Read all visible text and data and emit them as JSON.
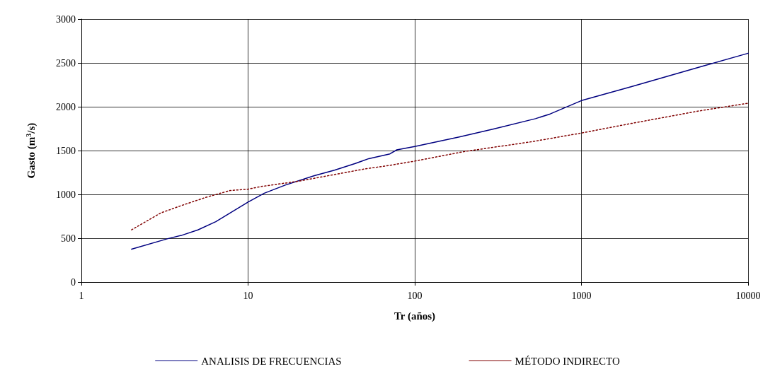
{
  "chart_data": {
    "type": "line",
    "xlabel": "Tr (años)",
    "ylabel": "Gasto (m$^{3}$/s)",
    "log": "x",
    "xlim": [
      1,
      10000
    ],
    "xticks": [
      1,
      10,
      100,
      1000,
      10000
    ],
    "ylim": [
      0,
      3000
    ],
    "yticks": [
      0,
      500,
      1000,
      1500,
      2000,
      2500,
      3000
    ],
    "grid": true,
    "legend": "bottom",
    "marker": "none",
    "series": [
      {
        "name": "ANALISIS DE FRECUENCIAS",
        "color": "#000080",
        "line_style": "solid",
        "x": [
          2,
          3.3,
          4,
          5,
          6.4,
          10,
          12.5,
          16.7,
          25,
          33,
          44,
          53,
          71,
          78,
          100,
          185,
          300,
          530,
          650,
          1000,
          2000,
          5400,
          10000
        ],
        "values": [
          375,
          495,
          533,
          595,
          688,
          912,
          1013,
          1106,
          1214,
          1276,
          1353,
          1408,
          1462,
          1508,
          1547,
          1655,
          1748,
          1864,
          1918,
          2070,
          2230,
          2465,
          2610
        ]
      },
      {
        "name": "MÉTODO INDIRECTO",
        "color": "#800000",
        "line_style": "dotted",
        "x": [
          2,
          3,
          4,
          5.6,
          7.8,
          10,
          12,
          20,
          50,
          70,
          100,
          200,
          500,
          1000,
          2000,
          5000,
          10000
        ],
        "values": [
          595,
          789,
          874,
          967,
          1044,
          1060,
          1090,
          1150,
          1290,
          1330,
          1380,
          1490,
          1600,
          1700,
          1810,
          1950,
          2040
        ]
      }
    ]
  }
}
